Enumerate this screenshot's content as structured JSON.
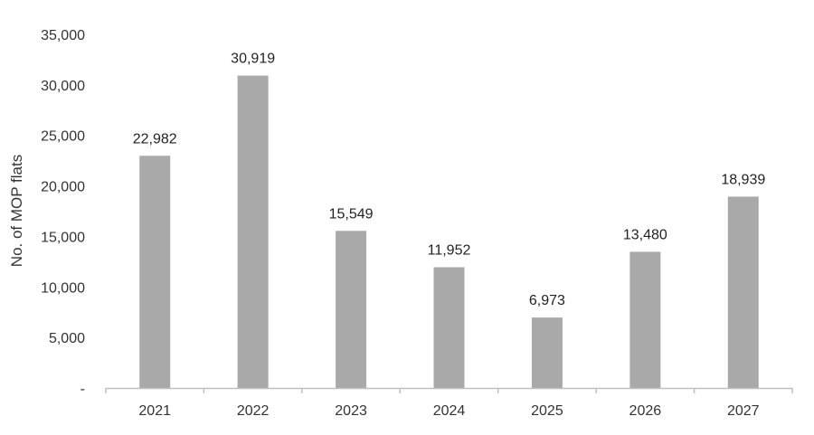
{
  "chart_data": {
    "type": "bar",
    "title": "",
    "xlabel": "",
    "ylabel": "No. of MOP flats",
    "categories": [
      "2021",
      "2022",
      "2023",
      "2024",
      "2025",
      "2026",
      "2027"
    ],
    "values": [
      22982,
      30919,
      15549,
      11952,
      6973,
      13480,
      18939
    ],
    "data_labels": [
      "22,982",
      "30,919",
      "15,549",
      "11,952",
      "6,973",
      "13,480",
      "18,939"
    ],
    "ylim": [
      0,
      35000
    ],
    "y_ticks": [
      0,
      5000,
      10000,
      15000,
      20000,
      25000,
      30000,
      35000
    ],
    "y_tick_labels": [
      "-",
      "5,000",
      "10,000",
      "15,000",
      "20,000",
      "25,000",
      "30,000",
      "35,000"
    ],
    "grid": false,
    "legend": "none",
    "colors": {
      "bar": "#a9a9a9",
      "axis": "#bfbfbf",
      "text": "#333333"
    }
  }
}
